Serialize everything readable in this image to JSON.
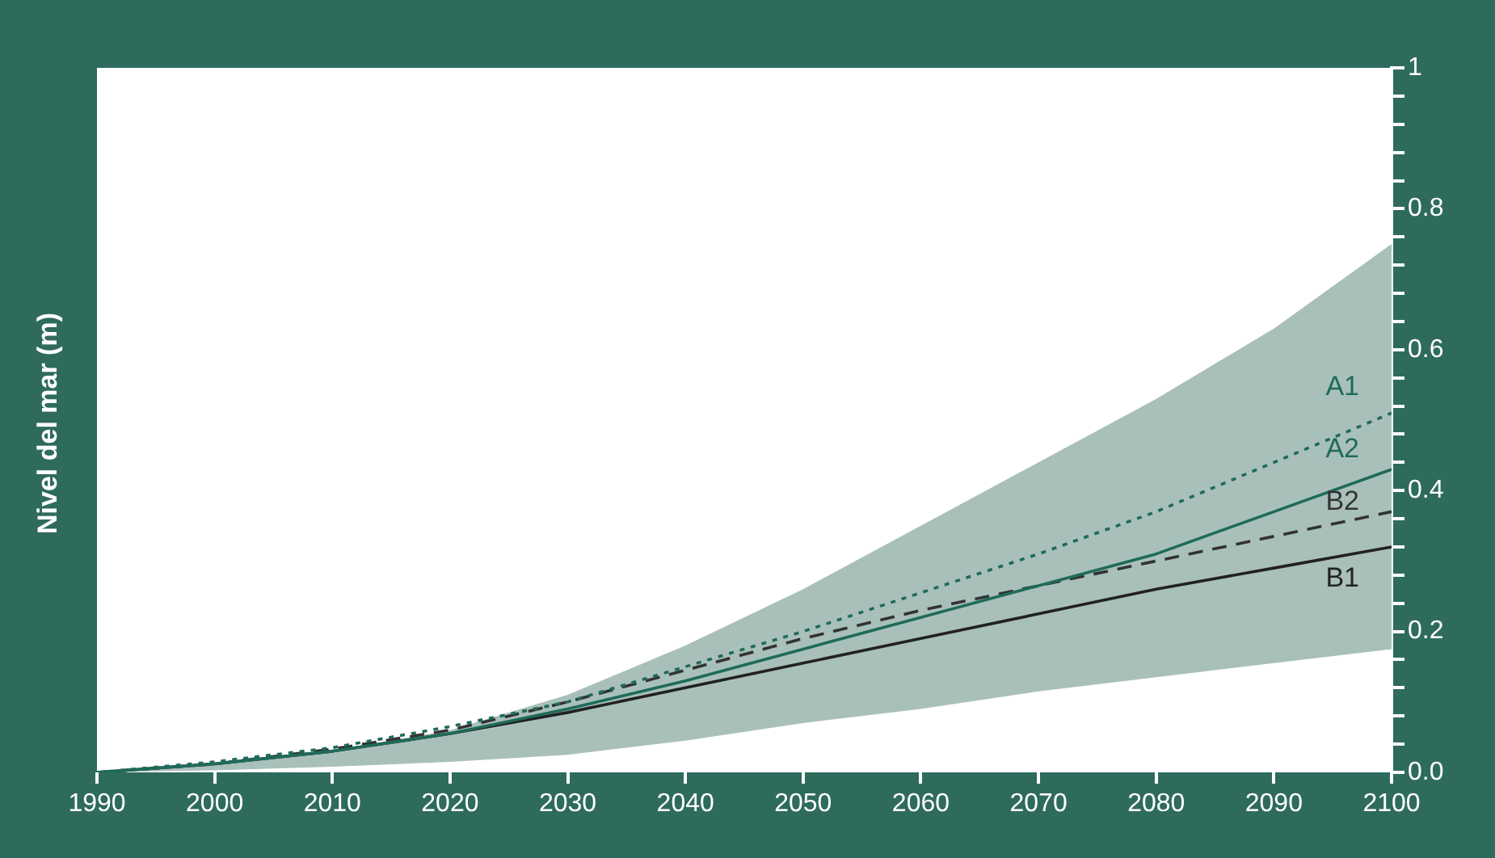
{
  "chart_data": {
    "type": "line",
    "ylabel": "Nivel del mar (m)",
    "x": [
      1990,
      2000,
      2010,
      2020,
      2030,
      2040,
      2050,
      2060,
      2070,
      2080,
      2090,
      2100
    ],
    "xlim": [
      1990,
      2100
    ],
    "xticks": [
      1990,
      2000,
      2010,
      2020,
      2030,
      2040,
      2050,
      2060,
      2070,
      2080,
      2090,
      2100
    ],
    "ylim": [
      0,
      1
    ],
    "yticks": [
      {
        "value": 0,
        "label": "0.0"
      },
      {
        "value": 0.04,
        "label": null
      },
      {
        "value": 0.08,
        "label": null
      },
      {
        "value": 0.12,
        "label": null
      },
      {
        "value": 0.16,
        "label": null
      },
      0.2,
      {
        "value": 0.24,
        "label": null
      },
      {
        "value": 0.28,
        "label": null
      },
      {
        "value": 0.32,
        "label": null
      },
      {
        "value": 0.36,
        "label": null
      },
      0.4,
      {
        "value": 0.44,
        "label": null
      },
      {
        "value": 0.48,
        "label": null
      },
      {
        "value": 0.52,
        "label": null
      },
      {
        "value": 0.56,
        "label": null
      },
      0.6,
      {
        "value": 0.64,
        "label": null
      },
      {
        "value": 0.68,
        "label": null
      },
      {
        "value": 0.72,
        "label": null
      },
      {
        "value": 0.76,
        "label": null
      },
      0.8,
      {
        "value": 0.84,
        "label": null
      },
      {
        "value": 0.88,
        "label": null
      },
      {
        "value": 0.92,
        "label": null
      },
      {
        "value": 0.96,
        "label": null
      },
      1
    ],
    "grid": false,
    "legend": false,
    "marker": "none",
    "series": [
      {
        "type": "area",
        "color": "#a9c0ba",
        "values": [
          null,
          null,
          null,
          null,
          null,
          null,
          null,
          null,
          null,
          null,
          null,
          null
        ],
        "lower": [
          0,
          0.003,
          0.008,
          0.015,
          0.025,
          0.045,
          0.07,
          0.09,
          0.115,
          0.135,
          0.155,
          0.175
        ],
        "upper": [
          0,
          0.01,
          0.03,
          0.06,
          0.11,
          0.18,
          0.26,
          0.35,
          0.44,
          0.53,
          0.63,
          0.75
        ]
      },
      {
        "name": "A1",
        "color": "#1f6b5a",
        "line_style": "dotted",
        "values": [
          0,
          0.015,
          0.035,
          0.065,
          0.1,
          0.15,
          0.2,
          0.255,
          0.31,
          0.37,
          0.44,
          0.51
        ]
      },
      {
        "name": "A2",
        "color": "#1f6b5a",
        "line_style": "solid",
        "values": [
          0,
          0.012,
          0.03,
          0.055,
          0.09,
          0.13,
          0.175,
          0.22,
          0.265,
          0.31,
          0.37,
          0.43
        ]
      },
      {
        "name": "B2",
        "color": "#333333",
        "line_style": "dashed",
        "values": [
          0,
          0.012,
          0.033,
          0.06,
          0.1,
          0.145,
          0.19,
          0.23,
          0.265,
          0.3,
          0.335,
          0.37
        ]
      },
      {
        "name": "B1",
        "color": "#222222",
        "line_style": "solid",
        "values": [
          0,
          0.012,
          0.03,
          0.055,
          0.085,
          0.12,
          0.155,
          0.19,
          0.225,
          0.26,
          0.29,
          0.32
        ]
      }
    ]
  }
}
